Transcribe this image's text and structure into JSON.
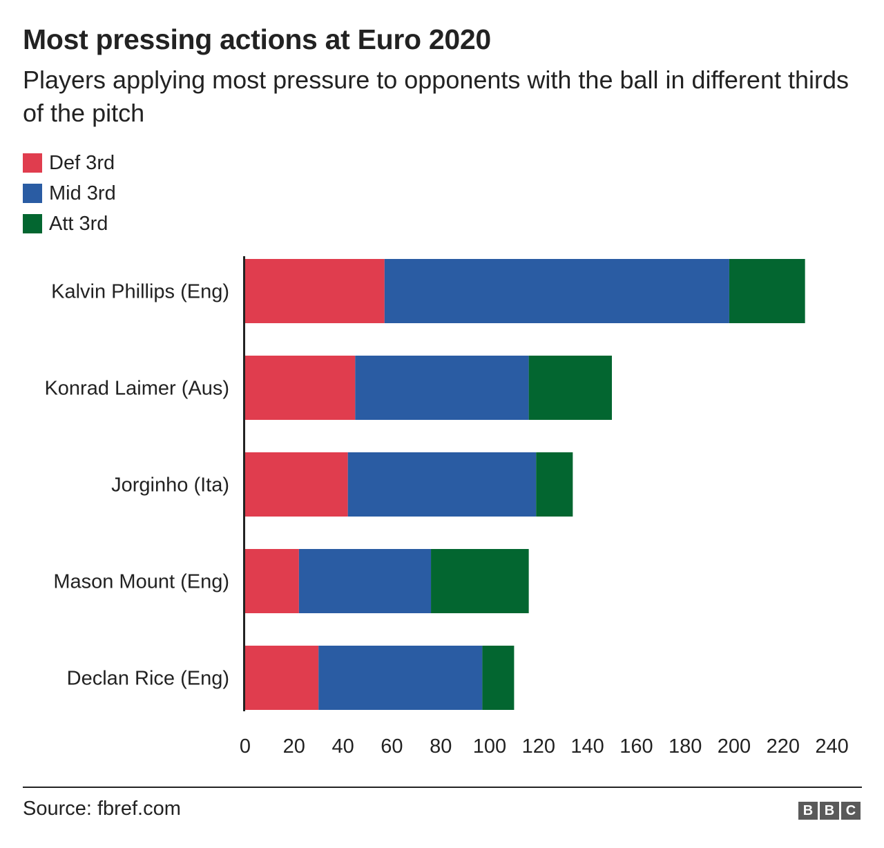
{
  "header": {
    "title": "Most pressing actions at Euro 2020",
    "subtitle": "Players applying most pressure to opponents with the ball in different thirds of the pitch"
  },
  "legend": [
    {
      "label": "Def 3rd",
      "color": "#e03d4e"
    },
    {
      "label": "Mid 3rd",
      "color": "#2a5ca3"
    },
    {
      "label": "Att 3rd",
      "color": "#036630"
    }
  ],
  "chart_data": {
    "type": "bar",
    "orientation": "horizontal",
    "stacked": true,
    "categories": [
      "Kalvin Phillips (Eng)",
      "Konrad Laimer (Aus)",
      "Jorginho (Ita)",
      "Mason Mount (Eng)",
      "Declan Rice (Eng)"
    ],
    "series": [
      {
        "name": "Def 3rd",
        "color": "#e03d4e",
        "values": [
          57,
          45,
          42,
          22,
          30
        ]
      },
      {
        "name": "Mid 3rd",
        "color": "#2a5ca3",
        "values": [
          141,
          71,
          77,
          54,
          67
        ]
      },
      {
        "name": "Att 3rd",
        "color": "#036630",
        "values": [
          31,
          34,
          15,
          40,
          13
        ]
      }
    ],
    "xlim": [
      0,
      240
    ],
    "xticks": [
      "0",
      "20",
      "40",
      "60",
      "80",
      "100",
      "120",
      "140",
      "160",
      "180",
      "200",
      "220",
      "240"
    ],
    "grid": false,
    "legend_position": "top-left"
  },
  "footer": {
    "source": "Source: fbref.com",
    "logo": [
      "B",
      "B",
      "C"
    ]
  }
}
